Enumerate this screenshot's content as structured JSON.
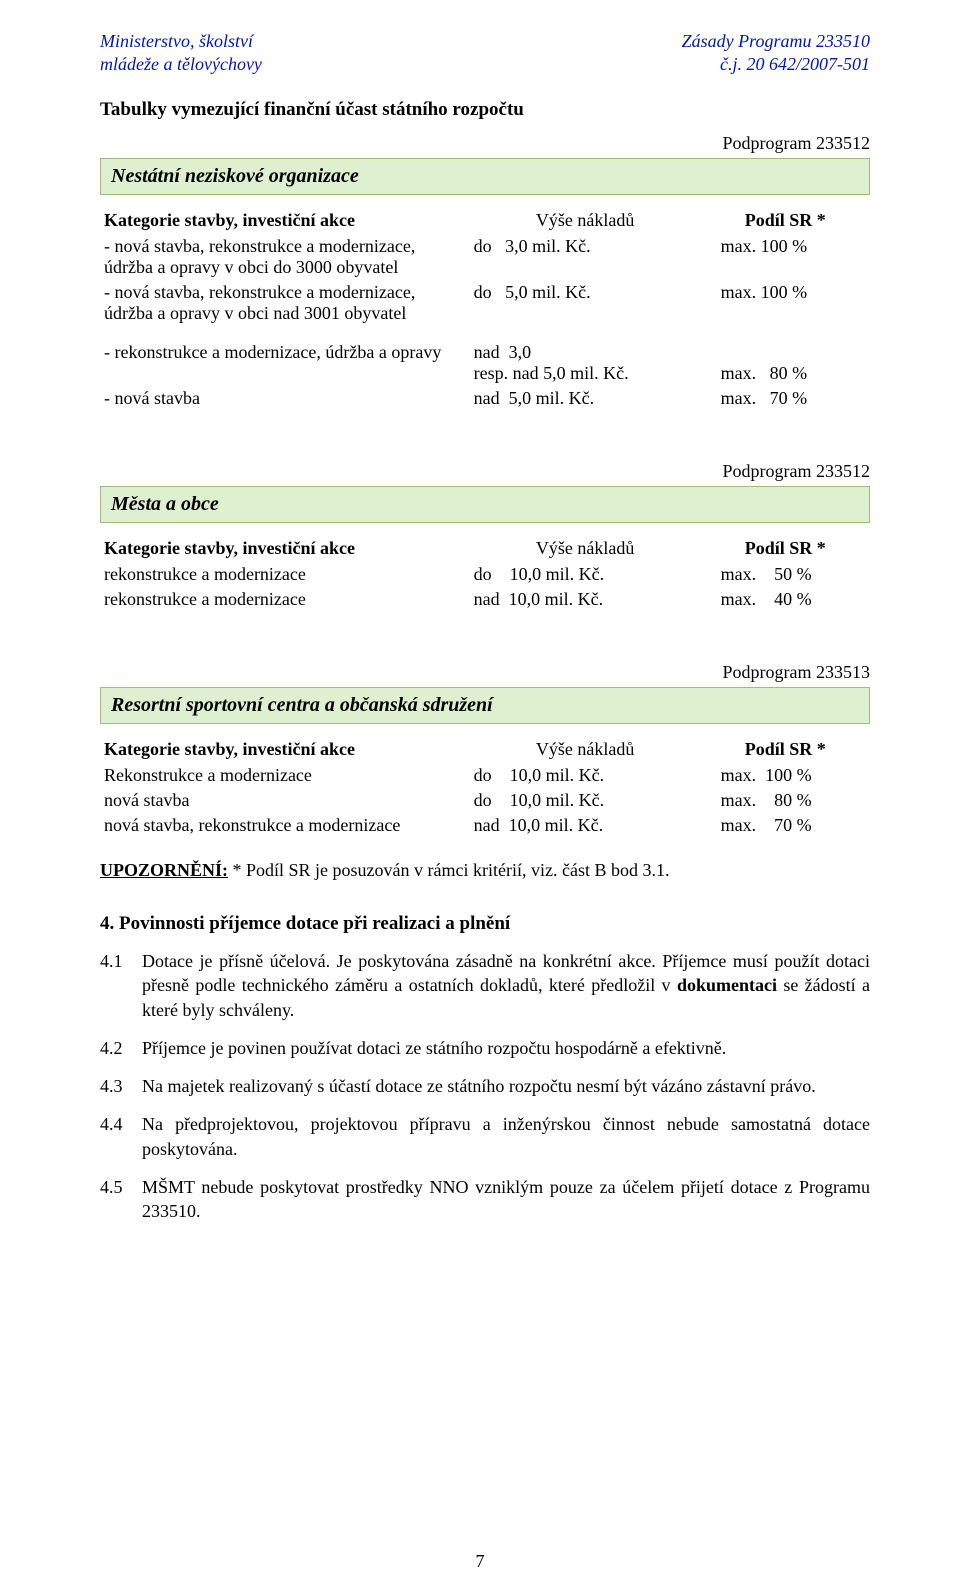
{
  "header": {
    "left_line1": "Ministerstvo, školství",
    "left_line2": "mládeže a tělovýchovy",
    "right_line1": "Zásady Programu 233510",
    "right_line2": "č.j. 20 642/2007-501"
  },
  "intro": "Tabulky vymezující finanční účast státního rozpočtu",
  "subprog_label_1": "Podprogram 233512",
  "table1": {
    "title": "Nestátní neziskové organizace",
    "col1": "Kategorie stavby, investiční akce",
    "col2": "Výše nákladů",
    "col3": "Podíl SR *",
    "rows": [
      {
        "c1": "- nová stavba, rekonstrukce a modernizace, údržba a opravy v obci do 3000 obyvatel",
        "c2": "do   3,0 mil. Kč.",
        "c3": "max. 100 %"
      },
      {
        "c1": "- nová stavba, rekonstrukce a modernizace, údržba a opravy v obci nad 3001 obyvatel",
        "c2": "do   5,0 mil. Kč.",
        "c3": "max. 100 %"
      }
    ],
    "rows2": [
      {
        "c1": "- rekonstrukce a modernizace, údržba a opravy",
        "c2": "nad  3,0\nresp. nad 5,0 mil. Kč.",
        "c3": "max.   80 %"
      },
      {
        "c1": "- nová stavba",
        "c2": "nad  5,0 mil. Kč.",
        "c3": "max.   70 %"
      }
    ]
  },
  "subprog_label_2": "Podprogram 233512",
  "table2": {
    "title": "Města a obce",
    "col1": "Kategorie stavby, investiční akce",
    "col2": "Výše nákladů",
    "col3": "Podíl SR *",
    "rows": [
      {
        "c1": "rekonstrukce a modernizace",
        "c2": "do    10,0 mil. Kč.",
        "c3": "max.    50 %"
      },
      {
        "c1": "rekonstrukce a modernizace",
        "c2": "nad  10,0 mil. Kč.",
        "c3": "max.    40 %"
      }
    ]
  },
  "subprog_label_3": "Podprogram 233513",
  "table3": {
    "title": "Resortní sportovní centra a občanská sdružení",
    "col1": "Kategorie stavby, investiční akce",
    "col2": "Výše nákladů",
    "col3": "Podíl SR *",
    "rows": [
      {
        "c1": "Rekonstrukce a modernizace",
        "c2": "do    10,0 mil. Kč.",
        "c3": "max.  100 %"
      },
      {
        "c1": "nová stavba",
        "c2": "do    10,0 mil. Kč.",
        "c3": "max.    80 %"
      },
      {
        "c1": "nová stavba, rekonstrukce a modernizace",
        "c2": "nad  10,0 mil. Kč.",
        "c3": "max.    70 %"
      }
    ]
  },
  "upozorneni": {
    "label": "UPOZORNĚNÍ:",
    "text": " * Podíl SR je posuzován v rámci kritérií, viz. část B bod 3.1."
  },
  "section4": {
    "title": "4.   Povinnosti příjemce dotace při realizaci a plnění",
    "items": [
      {
        "num": "4.1",
        "html": "Dotace je přísně účelová. Je poskytována zásadně na konkrétní akce. Příjemce musí použít dotaci přesně podle technického záměru a ostatních dokladů, které předložil v <b>dokumentaci</b> se žádostí a které byly schváleny."
      },
      {
        "num": "4.2",
        "html": "Příjemce je povinen používat dotaci ze státního rozpočtu hospodárně a efektivně."
      },
      {
        "num": "4.3",
        "html": "Na majetek realizovaný s účastí dotace ze státního rozpočtu nesmí být vázáno zástavní právo."
      },
      {
        "num": "4.4",
        "html": "Na předprojektovou, projektovou přípravu a inženýrskou činnost nebude samostatná dotace poskytována."
      },
      {
        "num": "4.5",
        "html": "MŠMT nebude poskytovat prostředky NNO vzniklým pouze za účelem přijetí dotace z Programu 233510."
      }
    ]
  },
  "page_number": "7"
}
